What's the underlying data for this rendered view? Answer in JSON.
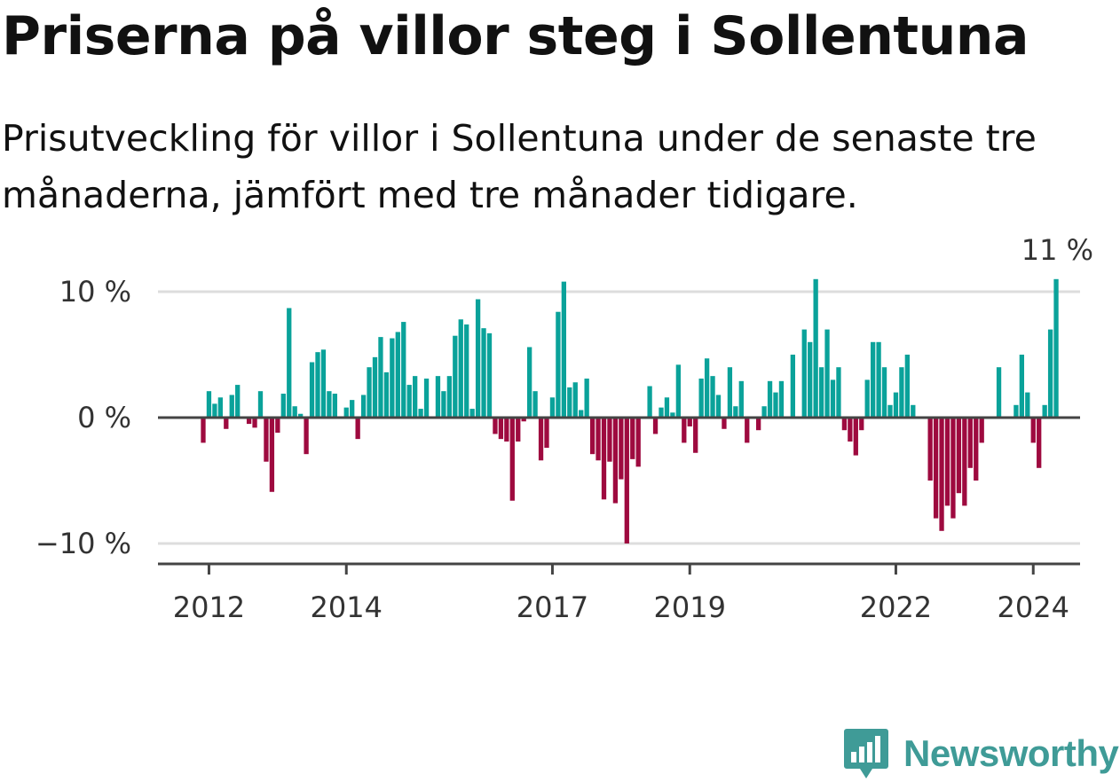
{
  "title": "Priserna på villor steg i Sollentuna",
  "subtitle": "Prisutveckling för villor i Sollentuna under de senaste tre månaderna, jämfört med tre månader tidigare.",
  "brand": {
    "name": "Newsworthy"
  },
  "colors": {
    "positive": "#0aa29a",
    "negative": "#9e0a3f",
    "zero_line": "#444444",
    "grid": "#dddddd"
  },
  "chart_data": {
    "type": "bar",
    "unit": "%",
    "y_ticks": [
      {
        "value": 10,
        "label": "10 %"
      },
      {
        "value": 0,
        "label": "0 %"
      },
      {
        "value": -10,
        "label": "−10 %"
      }
    ],
    "x_ticks": [
      {
        "value": "2012-01",
        "label": "2012"
      },
      {
        "value": "2014-01",
        "label": "2014"
      },
      {
        "value": "2017-01",
        "label": "2017"
      },
      {
        "value": "2019-01",
        "label": "2019"
      },
      {
        "value": "2022-01",
        "label": "2022"
      },
      {
        "value": "2024-01",
        "label": "2024"
      }
    ],
    "ylim": [
      -11.5,
      11.5
    ],
    "grid": true,
    "last_label": "11 %",
    "start_month": "2011-12",
    "values": [
      -2,
      2.1,
      1.1,
      1.6,
      -0.9,
      1.8,
      2.6,
      0,
      -0.5,
      -0.8,
      2.1,
      -3.5,
      -5.9,
      -1.2,
      1.9,
      8.7,
      0.9,
      0.3,
      -2.9,
      4.4,
      5.2,
      5.4,
      2.1,
      1.9,
      0,
      0.8,
      1.4,
      -1.7,
      1.8,
      4.0,
      4.8,
      6.4,
      3.6,
      6.3,
      6.8,
      7.6,
      2.6,
      3.3,
      0.7,
      3.1,
      0,
      3.3,
      2.1,
      3.3,
      6.5,
      7.8,
      7.4,
      0.7,
      9.4,
      7.1,
      6.7,
      -1.3,
      -1.7,
      -1.9,
      -6.6,
      -1.9,
      -0.3,
      5.6,
      2.1,
      -3.4,
      -2.4,
      1.6,
      8.4,
      10.8,
      2.4,
      2.8,
      0.6,
      3.1,
      -2.9,
      -3.4,
      -6.5,
      -3.5,
      -6.8,
      -4.9,
      -10.0,
      -3.3,
      -3.9,
      0.1,
      2.5,
      -1.3,
      0.8,
      1.6,
      0.4,
      4.2,
      -2.0,
      -0.7,
      -2.8,
      3.1,
      4.7,
      3.3,
      1.8,
      -0.9,
      4.0,
      0.9,
      2.9,
      -2.0,
      0.1,
      -1.0,
      0.9,
      2.9,
      2.0,
      2.9,
      0.1,
      5.0,
      0.1,
      7.0,
      6.0,
      11.0,
      4.0,
      7.0,
      3.0,
      4.0,
      -1.0,
      -1.9,
      -3.0,
      -1.0,
      3.0,
      6.0,
      6.0,
      4.0,
      1.0,
      2.0,
      4.0,
      5.0,
      1.0,
      0,
      0,
      -5.0,
      -8.0,
      -9.0,
      -7.0,
      -8.0,
      -6.0,
      -7.0,
      -4.0,
      -5.0,
      -2.0,
      0,
      0,
      4.0,
      0,
      0,
      1.0,
      5.0,
      2.0,
      -2.0,
      -4.0,
      1.0,
      7.0,
      11.0
    ]
  }
}
